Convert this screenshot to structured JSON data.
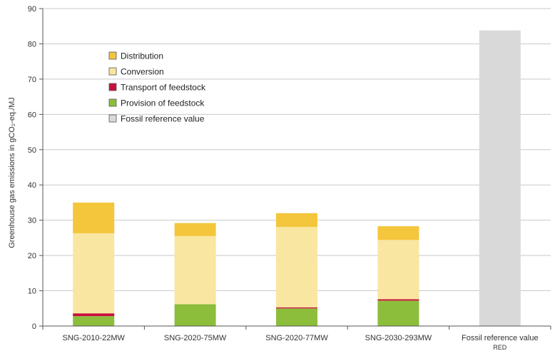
{
  "chart_data": {
    "type": "bar",
    "stacked": true,
    "categories": [
      "SNG-2010-22MW",
      "SNG-2020-75MW",
      "SNG-2020-77MW",
      "SNG-2030-293MW",
      "Fossil reference value"
    ],
    "category_sublabels": [
      "",
      "",
      "",
      "",
      "RED"
    ],
    "ylabel": "Greenhouse gas emissions in gCO₂-eq./MJ",
    "ylim": [
      0,
      90
    ],
    "yticks": [
      0,
      10,
      20,
      30,
      40,
      50,
      60,
      70,
      80,
      90
    ],
    "grid": true,
    "legend_position": "top-left",
    "series": [
      {
        "name": "Provision of feedstock",
        "color": "#8cbe3c",
        "values": [
          2.8,
          6.2,
          5.0,
          7.2,
          0
        ]
      },
      {
        "name": "Transport of feedstock",
        "color": "#c8103c",
        "values": [
          0.8,
          0,
          0.3,
          0.4,
          0
        ]
      },
      {
        "name": "Conversion",
        "color": "#f9e6a0",
        "values": [
          22.7,
          19.3,
          22.8,
          16.8,
          0
        ]
      },
      {
        "name": "Distribution",
        "color": "#f4c63c",
        "values": [
          8.7,
          3.7,
          3.9,
          3.9,
          0
        ]
      },
      {
        "name": "Fossil reference value",
        "color": "#d9d9d9",
        "values": [
          0,
          0,
          0,
          0,
          83.8
        ]
      }
    ],
    "legend_order": [
      "Distribution",
      "Conversion",
      "Transport of feedstock",
      "Provision of feedstock",
      "Fossil reference value"
    ]
  }
}
